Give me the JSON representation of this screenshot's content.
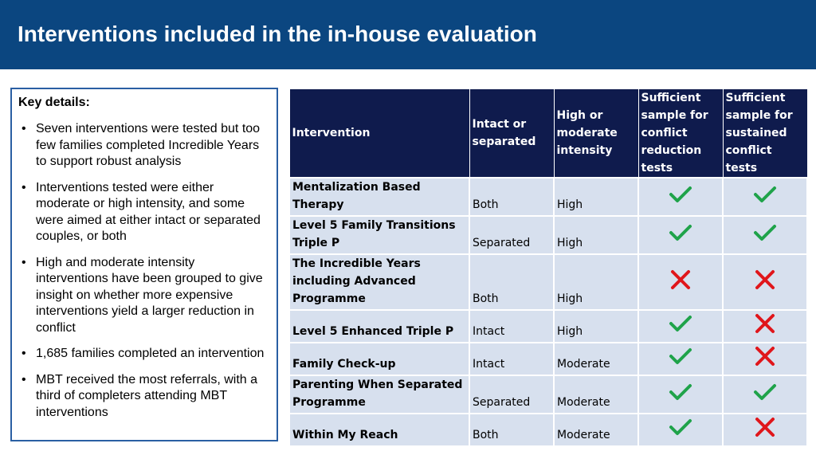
{
  "header": {
    "title": "Interventions included in the in-house evaluation"
  },
  "key_details": {
    "heading": "Key details:",
    "items": [
      "Seven interventions were tested but too few families completed Incredible Years to support robust analysis",
      "Interventions tested were either moderate or high intensity, and some were aimed at either intact or separated couples, or both",
      "High and moderate intensity interventions have been grouped to give insight on whether more expensive interventions yield a larger reduction in conflict",
      "1,685 families completed an intervention",
      "MBT received the most referrals, with a third of completers attending MBT interventions"
    ]
  },
  "table": {
    "headers": [
      "Intervention",
      "Intact or separated",
      "High or moderate intensity",
      "Sufficient sample for conflict reduction tests",
      "Sufficient sample for sustained conflict tests"
    ],
    "rows": [
      {
        "intervention": "Mentalization Based Therapy",
        "status": "Both",
        "intensity": "High",
        "conflict_reduction": "check",
        "sustained_conflict": "check"
      },
      {
        "intervention": "Level 5 Family Transitions Triple P",
        "status": "Separated",
        "intensity": "High",
        "conflict_reduction": "check",
        "sustained_conflict": "check"
      },
      {
        "intervention": "The Incredible Years including Advanced Programme",
        "status": "Both",
        "intensity": "High",
        "conflict_reduction": "cross",
        "sustained_conflict": "cross"
      },
      {
        "intervention": "Level 5 Enhanced Triple P",
        "status": "Intact",
        "intensity": "High",
        "conflict_reduction": "check",
        "sustained_conflict": "cross"
      },
      {
        "intervention": "Family Check-up",
        "status": "Intact",
        "intensity": "Moderate",
        "conflict_reduction": "check",
        "sustained_conflict": "cross"
      },
      {
        "intervention": "Parenting When Separated Programme",
        "status": "Separated",
        "intensity": "Moderate",
        "conflict_reduction": "check",
        "sustained_conflict": "check"
      },
      {
        "intervention": "Within My Reach",
        "status": "Both",
        "intensity": "Moderate",
        "conflict_reduction": "check",
        "sustained_conflict": "cross"
      }
    ]
  },
  "colors": {
    "header_bg": "#0b4680",
    "table_header_bg": "#0f1b4d",
    "row_bg": "#d7e0ee",
    "check": "#1fa34a",
    "cross": "#e0161b",
    "box_border": "#2a5fa3"
  }
}
